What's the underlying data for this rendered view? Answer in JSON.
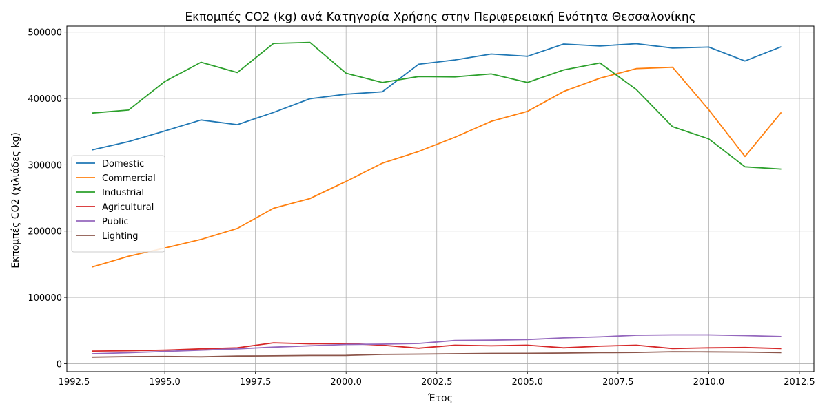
{
  "chart_data": {
    "type": "line",
    "title": "Εκπομπές CO2 (kg) ανά Κατηγορία Χρήσης στην Περιφερειακή Ενότητα Θεσσαλονίκης",
    "xlabel": "Έτος",
    "ylabel": "Εκπομπές CO2 (χιλιάδες kg)",
    "xlim": [
      1992.3,
      2012.9
    ],
    "ylim": [
      -12000,
      509000
    ],
    "x_ticks": [
      1992.5,
      1995.0,
      1997.5,
      2000.0,
      2002.5,
      2005.0,
      2007.5,
      2010.0,
      2012.5
    ],
    "x_tick_labels": [
      "1992.5",
      "1995.0",
      "1997.5",
      "2000.0",
      "2002.5",
      "2005.0",
      "2007.5",
      "2010.0",
      "2012.5"
    ],
    "y_ticks": [
      0,
      100000,
      200000,
      300000,
      400000,
      500000
    ],
    "y_tick_labels": [
      "0",
      "100000",
      "200000",
      "300000",
      "400000",
      "500000"
    ],
    "grid": true,
    "legend_position": "center-left",
    "x": [
      1993,
      1994,
      1995,
      1996,
      1997,
      1998,
      1999,
      2000,
      2001,
      2002,
      2003,
      2004,
      2005,
      2006,
      2007,
      2008,
      2009,
      2010,
      2011,
      2012
    ],
    "series": [
      {
        "name": "Domestic",
        "color": "#1f77b4",
        "values": [
          322500,
          335000,
          351000,
          367500,
          360500,
          379000,
          399500,
          406500,
          410000,
          451500,
          458000,
          467000,
          463500,
          482000,
          479000,
          482500,
          476000,
          477500,
          456500,
          478000
        ]
      },
      {
        "name": "Commercial",
        "color": "#ff7f0e",
        "values": [
          146000,
          162000,
          174500,
          187500,
          204000,
          234500,
          249000,
          275000,
          302500,
          320000,
          341500,
          365500,
          380500,
          410500,
          430500,
          445000,
          447000,
          383000,
          312500,
          379000
        ]
      },
      {
        "name": "Industrial",
        "color": "#2ca02c",
        "values": [
          378000,
          382500,
          425500,
          454500,
          439000,
          483000,
          484500,
          438000,
          424000,
          433000,
          432500,
          437000,
          424000,
          443000,
          453500,
          413500,
          357500,
          339000,
          297000,
          293500
        ]
      },
      {
        "name": "Agricultural",
        "color": "#d62728",
        "values": [
          19000,
          19500,
          20500,
          22500,
          24000,
          31500,
          30000,
          30500,
          28000,
          23500,
          28000,
          27000,
          28000,
          24000,
          26500,
          28000,
          23000,
          24000,
          24500,
          23000
        ]
      },
      {
        "name": "Public",
        "color": "#9467bd",
        "values": [
          15000,
          16500,
          18500,
          20500,
          22500,
          25000,
          27000,
          29000,
          29500,
          30500,
          35000,
          35500,
          36500,
          39000,
          40500,
          43000,
          43500,
          43500,
          42500,
          41000
        ]
      },
      {
        "name": "Lighting",
        "color": "#8c564b",
        "values": [
          10000,
          10800,
          11000,
          10500,
          11700,
          12000,
          12500,
          12600,
          14000,
          14500,
          15000,
          15500,
          15600,
          16000,
          16600,
          17000,
          18000,
          17800,
          17500,
          16800
        ]
      }
    ]
  }
}
